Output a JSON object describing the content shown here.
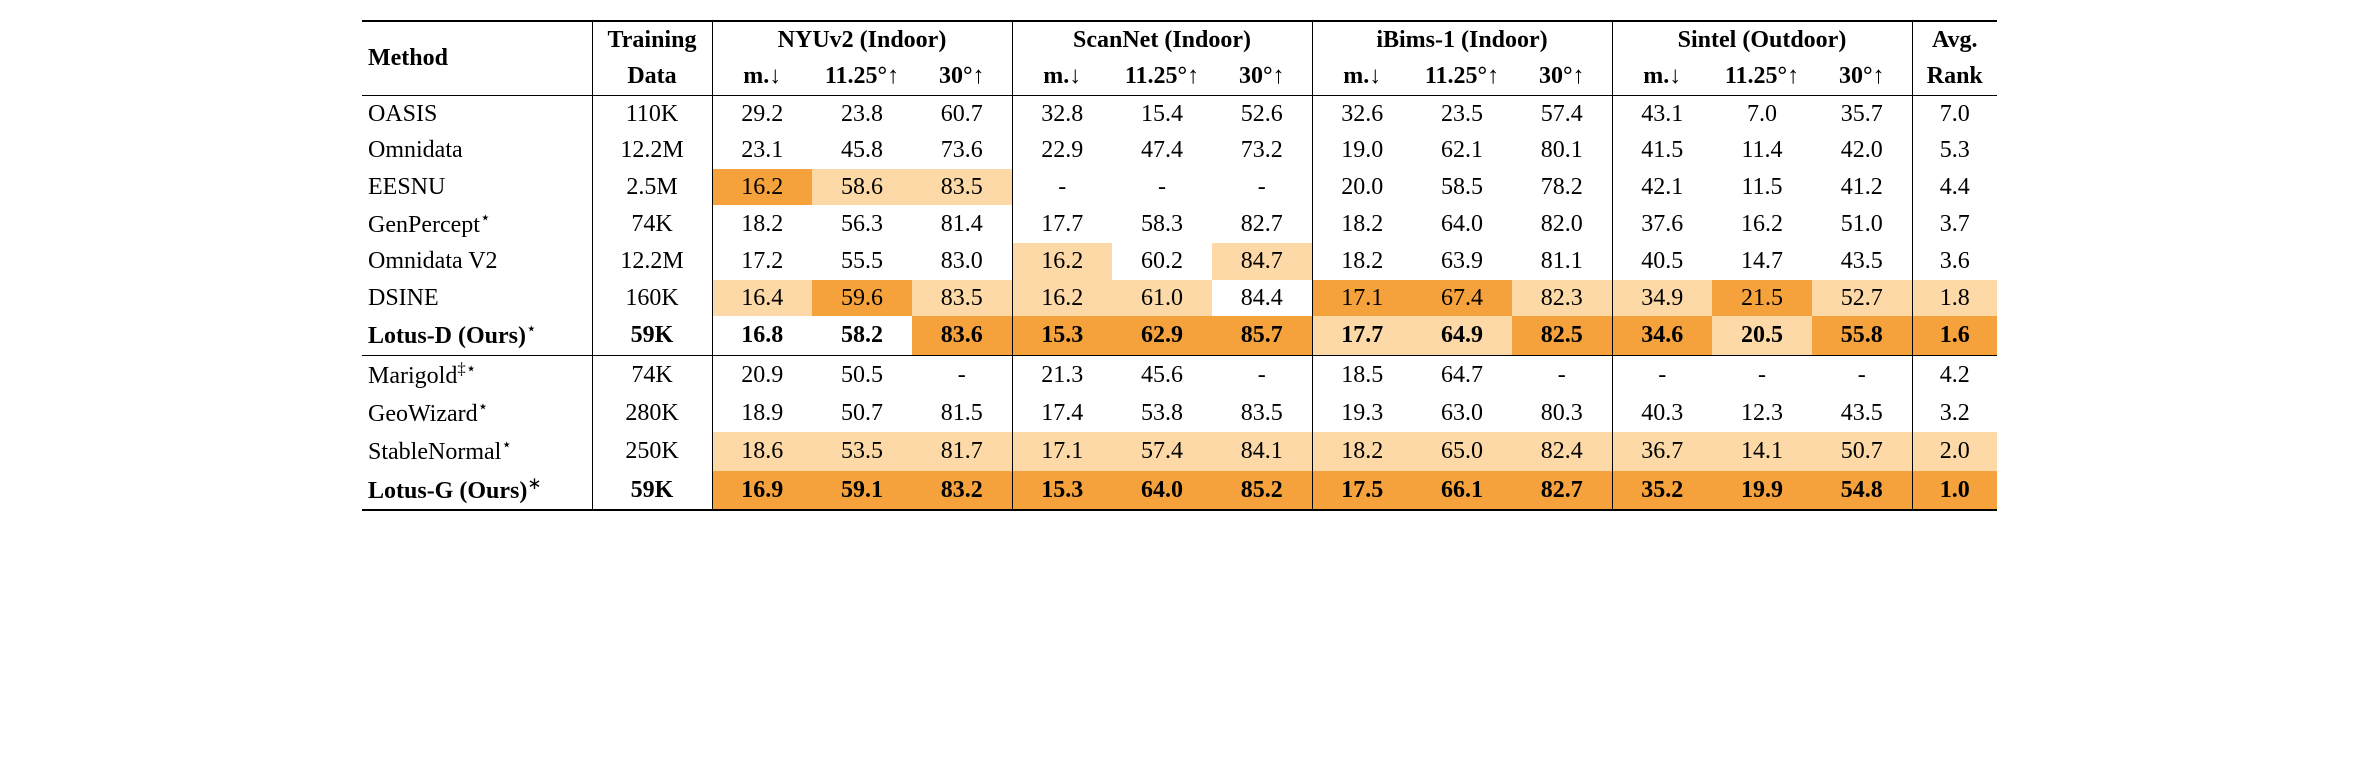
{
  "colors": {
    "hl_dark": "#f5a23c",
    "hl_light": "#fcd9a6",
    "text": "#000000",
    "bg": "#ffffff"
  },
  "col_widths": {
    "method": 230,
    "training": 120,
    "metric": 100,
    "rank": 85
  },
  "header": {
    "method": "Method",
    "training_top": "Training",
    "training_bot": "Data",
    "datasets": [
      "NYUv2 (Indoor)",
      "ScanNet (Indoor)",
      "iBims-1 (Indoor)",
      "Sintel (Outdoor)"
    ],
    "metrics": [
      "m.↓",
      "11.25°↑",
      "30°↑"
    ],
    "avg_top": "Avg.",
    "avg_bot": "Rank"
  },
  "groups": [
    {
      "rows": [
        {
          "method": "OASIS",
          "bold": false,
          "sup": "",
          "training": "110K",
          "cells": [
            {
              "v": "29.2",
              "hl": 0
            },
            {
              "v": "23.8",
              "hl": 0
            },
            {
              "v": "60.7",
              "hl": 0
            },
            {
              "v": "32.8",
              "hl": 0
            },
            {
              "v": "15.4",
              "hl": 0
            },
            {
              "v": "52.6",
              "hl": 0
            },
            {
              "v": "32.6",
              "hl": 0
            },
            {
              "v": "23.5",
              "hl": 0
            },
            {
              "v": "57.4",
              "hl": 0
            },
            {
              "v": "43.1",
              "hl": 0
            },
            {
              "v": "7.0",
              "hl": 0
            },
            {
              "v": "35.7",
              "hl": 0
            }
          ],
          "rank": {
            "v": "7.0",
            "hl": 0
          }
        },
        {
          "method": "Omnidata",
          "bold": false,
          "sup": "",
          "training": "12.2M",
          "cells": [
            {
              "v": "23.1",
              "hl": 0
            },
            {
              "v": "45.8",
              "hl": 0
            },
            {
              "v": "73.6",
              "hl": 0
            },
            {
              "v": "22.9",
              "hl": 0
            },
            {
              "v": "47.4",
              "hl": 0
            },
            {
              "v": "73.2",
              "hl": 0
            },
            {
              "v": "19.0",
              "hl": 0
            },
            {
              "v": "62.1",
              "hl": 0
            },
            {
              "v": "80.1",
              "hl": 0
            },
            {
              "v": "41.5",
              "hl": 0
            },
            {
              "v": "11.4",
              "hl": 0
            },
            {
              "v": "42.0",
              "hl": 0
            }
          ],
          "rank": {
            "v": "5.3",
            "hl": 0
          }
        },
        {
          "method": "EESNU",
          "bold": false,
          "sup": "",
          "training": "2.5M",
          "cells": [
            {
              "v": "16.2",
              "hl": 2
            },
            {
              "v": "58.6",
              "hl": 1
            },
            {
              "v": "83.5",
              "hl": 1
            },
            {
              "v": "-",
              "hl": 0
            },
            {
              "v": "-",
              "hl": 0
            },
            {
              "v": "-",
              "hl": 0
            },
            {
              "v": "20.0",
              "hl": 0
            },
            {
              "v": "58.5",
              "hl": 0
            },
            {
              "v": "78.2",
              "hl": 0
            },
            {
              "v": "42.1",
              "hl": 0
            },
            {
              "v": "11.5",
              "hl": 0
            },
            {
              "v": "41.2",
              "hl": 0
            }
          ],
          "rank": {
            "v": "4.4",
            "hl": 0
          }
        },
        {
          "method": "GenPercept",
          "bold": false,
          "sup": "⋆",
          "training": "74K",
          "cells": [
            {
              "v": "18.2",
              "hl": 0
            },
            {
              "v": "56.3",
              "hl": 0
            },
            {
              "v": "81.4",
              "hl": 0
            },
            {
              "v": "17.7",
              "hl": 0
            },
            {
              "v": "58.3",
              "hl": 0
            },
            {
              "v": "82.7",
              "hl": 0
            },
            {
              "v": "18.2",
              "hl": 0
            },
            {
              "v": "64.0",
              "hl": 0
            },
            {
              "v": "82.0",
              "hl": 0
            },
            {
              "v": "37.6",
              "hl": 0
            },
            {
              "v": "16.2",
              "hl": 0
            },
            {
              "v": "51.0",
              "hl": 0
            }
          ],
          "rank": {
            "v": "3.7",
            "hl": 0
          }
        },
        {
          "method": "Omnidata V2",
          "bold": false,
          "sup": "",
          "training": "12.2M",
          "cells": [
            {
              "v": "17.2",
              "hl": 0
            },
            {
              "v": "55.5",
              "hl": 0
            },
            {
              "v": "83.0",
              "hl": 0
            },
            {
              "v": "16.2",
              "hl": 1
            },
            {
              "v": "60.2",
              "hl": 0
            },
            {
              "v": "84.7",
              "hl": 1
            },
            {
              "v": "18.2",
              "hl": 0
            },
            {
              "v": "63.9",
              "hl": 0
            },
            {
              "v": "81.1",
              "hl": 0
            },
            {
              "v": "40.5",
              "hl": 0
            },
            {
              "v": "14.7",
              "hl": 0
            },
            {
              "v": "43.5",
              "hl": 0
            }
          ],
          "rank": {
            "v": "3.6",
            "hl": 0
          }
        },
        {
          "method": "DSINE",
          "bold": false,
          "sup": "",
          "training": "160K",
          "cells": [
            {
              "v": "16.4",
              "hl": 1
            },
            {
              "v": "59.6",
              "hl": 2
            },
            {
              "v": "83.5",
              "hl": 1
            },
            {
              "v": "16.2",
              "hl": 1
            },
            {
              "v": "61.0",
              "hl": 1
            },
            {
              "v": "84.4",
              "hl": 0
            },
            {
              "v": "17.1",
              "hl": 2
            },
            {
              "v": "67.4",
              "hl": 2
            },
            {
              "v": "82.3",
              "hl": 1
            },
            {
              "v": "34.9",
              "hl": 1
            },
            {
              "v": "21.5",
              "hl": 2
            },
            {
              "v": "52.7",
              "hl": 1
            }
          ],
          "rank": {
            "v": "1.8",
            "hl": 1
          }
        },
        {
          "method": "Lotus-D (Ours)",
          "bold": true,
          "sup": "⋆",
          "training": "59K",
          "cells": [
            {
              "v": "16.8",
              "hl": 0
            },
            {
              "v": "58.2",
              "hl": 0
            },
            {
              "v": "83.6",
              "hl": 2
            },
            {
              "v": "15.3",
              "hl": 2
            },
            {
              "v": "62.9",
              "hl": 2
            },
            {
              "v": "85.7",
              "hl": 2
            },
            {
              "v": "17.7",
              "hl": 1
            },
            {
              "v": "64.9",
              "hl": 1
            },
            {
              "v": "82.5",
              "hl": 2
            },
            {
              "v": "34.6",
              "hl": 2
            },
            {
              "v": "20.5",
              "hl": 1
            },
            {
              "v": "55.8",
              "hl": 2
            }
          ],
          "rank": {
            "v": "1.6",
            "hl": 2
          }
        }
      ]
    },
    {
      "rows": [
        {
          "method": "Marigold",
          "bold": false,
          "sup": "‡⋆",
          "training": "74K",
          "cells": [
            {
              "v": "20.9",
              "hl": 0
            },
            {
              "v": "50.5",
              "hl": 0
            },
            {
              "v": "-",
              "hl": 0
            },
            {
              "v": "21.3",
              "hl": 0
            },
            {
              "v": "45.6",
              "hl": 0
            },
            {
              "v": "-",
              "hl": 0
            },
            {
              "v": "18.5",
              "hl": 0
            },
            {
              "v": "64.7",
              "hl": 0
            },
            {
              "v": "-",
              "hl": 0
            },
            {
              "v": "-",
              "hl": 0
            },
            {
              "v": "-",
              "hl": 0
            },
            {
              "v": "-",
              "hl": 0
            }
          ],
          "rank": {
            "v": "4.2",
            "hl": 0
          }
        },
        {
          "method": "GeoWizard",
          "bold": false,
          "sup": "⋆",
          "training": "280K",
          "cells": [
            {
              "v": "18.9",
              "hl": 0
            },
            {
              "v": "50.7",
              "hl": 0
            },
            {
              "v": "81.5",
              "hl": 0
            },
            {
              "v": "17.4",
              "hl": 0
            },
            {
              "v": "53.8",
              "hl": 0
            },
            {
              "v": "83.5",
              "hl": 0
            },
            {
              "v": "19.3",
              "hl": 0
            },
            {
              "v": "63.0",
              "hl": 0
            },
            {
              "v": "80.3",
              "hl": 0
            },
            {
              "v": "40.3",
              "hl": 0
            },
            {
              "v": "12.3",
              "hl": 0
            },
            {
              "v": "43.5",
              "hl": 0
            }
          ],
          "rank": {
            "v": "3.2",
            "hl": 0
          }
        },
        {
          "method": "StableNormal",
          "bold": false,
          "sup": "⋆",
          "training": "250K",
          "cells": [
            {
              "v": "18.6",
              "hl": 1
            },
            {
              "v": "53.5",
              "hl": 1
            },
            {
              "v": "81.7",
              "hl": 1
            },
            {
              "v": "17.1",
              "hl": 1
            },
            {
              "v": "57.4",
              "hl": 1
            },
            {
              "v": "84.1",
              "hl": 1
            },
            {
              "v": "18.2",
              "hl": 1
            },
            {
              "v": "65.0",
              "hl": 1
            },
            {
              "v": "82.4",
              "hl": 1
            },
            {
              "v": "36.7",
              "hl": 1
            },
            {
              "v": "14.1",
              "hl": 1
            },
            {
              "v": "50.7",
              "hl": 1
            }
          ],
          "rank": {
            "v": "2.0",
            "hl": 1
          }
        },
        {
          "method": "Lotus-G (Ours)",
          "bold": true,
          "sup": "∗",
          "training": "59K",
          "cells": [
            {
              "v": "16.9",
              "hl": 2
            },
            {
              "v": "59.1",
              "hl": 2
            },
            {
              "v": "83.2",
              "hl": 2
            },
            {
              "v": "15.3",
              "hl": 2
            },
            {
              "v": "64.0",
              "hl": 2
            },
            {
              "v": "85.2",
              "hl": 2
            },
            {
              "v": "17.5",
              "hl": 2
            },
            {
              "v": "66.1",
              "hl": 2
            },
            {
              "v": "82.7",
              "hl": 2
            },
            {
              "v": "35.2",
              "hl": 2
            },
            {
              "v": "19.9",
              "hl": 2
            },
            {
              "v": "54.8",
              "hl": 2
            }
          ],
          "rank": {
            "v": "1.0",
            "hl": 2
          }
        }
      ]
    }
  ]
}
